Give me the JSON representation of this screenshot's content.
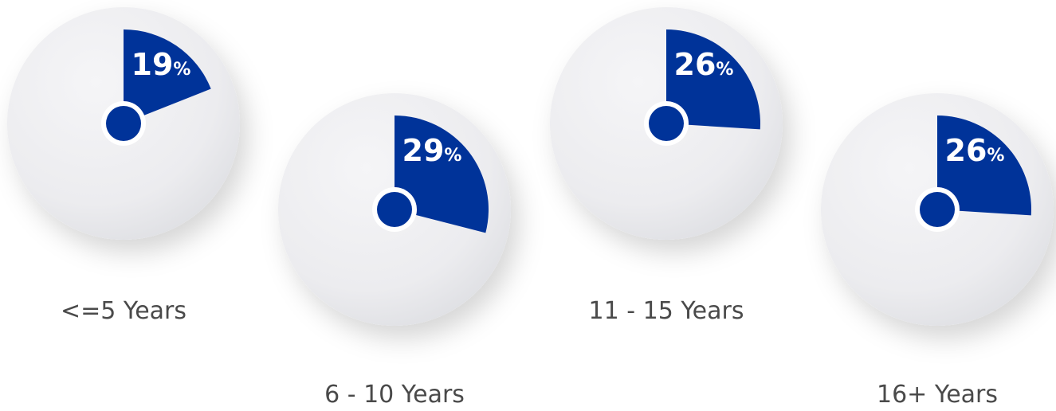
{
  "chart_data": {
    "type": "pie",
    "series": [
      {
        "category": "<=5 Years",
        "value": 19,
        "value_label": "19",
        "unit": "%"
      },
      {
        "category": "6 - 10 Years",
        "value": 29,
        "value_label": "29",
        "unit": "%"
      },
      {
        "category": "11 - 15 Years",
        "value": 26,
        "value_label": "26",
        "unit": "%"
      },
      {
        "category": "16+ Years",
        "value": 26,
        "value_label": "26",
        "unit": "%"
      }
    ]
  },
  "colors": {
    "slice": "#003399",
    "disc_light": "#f5f5f7",
    "disc_dark": "#dedfe3",
    "label": "#4a4a4a",
    "value_text": "#ffffff"
  }
}
